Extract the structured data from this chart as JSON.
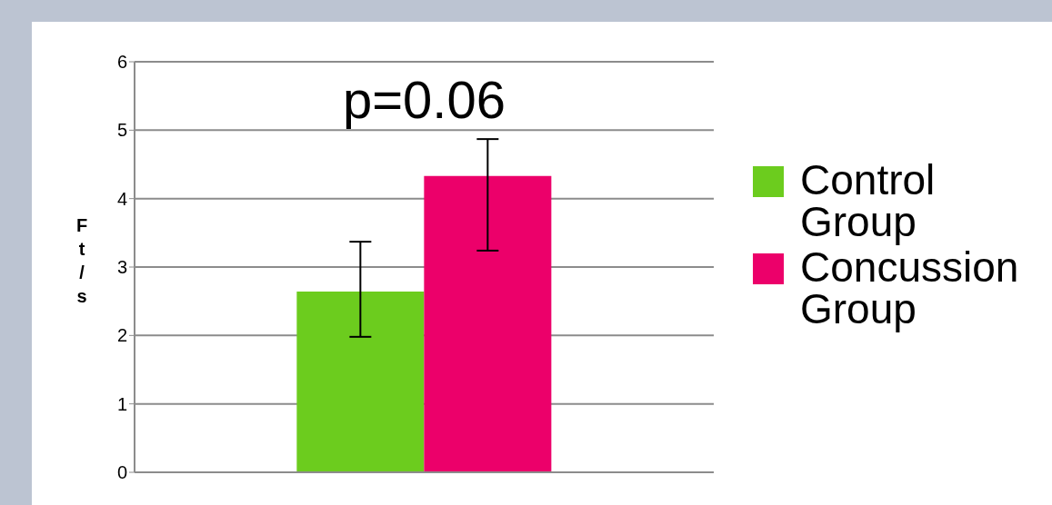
{
  "chart_data": {
    "type": "bar",
    "categories": [
      null
    ],
    "series": [
      {
        "name": "Control Group",
        "color": "#6ccc1e",
        "values": [
          2.64
        ],
        "errors": [
          [
            1.98,
            3.37
          ]
        ]
      },
      {
        "name": "Concussion Group",
        "color": "#ec006a",
        "values": [
          4.33
        ],
        "errors": [
          [
            3.24,
            4.87
          ]
        ]
      }
    ],
    "ylabel": "Ft/s",
    "ylim": [
      0,
      6
    ],
    "yticks": [
      0,
      1,
      2,
      3,
      4,
      5,
      6
    ],
    "grid": "y",
    "legend": "right",
    "annotations": [
      "p=0.06"
    ]
  }
}
